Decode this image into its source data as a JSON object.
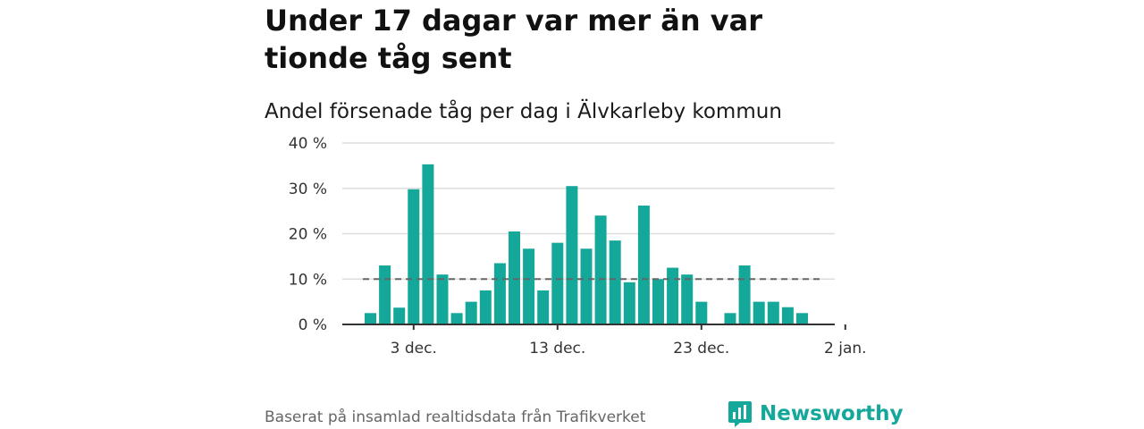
{
  "title": "Under 17 dagar var mer än var tionde tåg sent",
  "subtitle": "Andel försenade tåg per dag i Älvkarleby kommun",
  "source": "Baserat på insamlad realtidsdata från Trafikverket",
  "brand": {
    "name": "Newsworthy",
    "icon": "newsworthy-logo-icon"
  },
  "colors": {
    "bar": "#14a89a",
    "threshold": "#666666",
    "grid": "#dddddd",
    "axis": "#333333",
    "brand": "#14a89a"
  },
  "chart_data": {
    "type": "bar",
    "title": "Andel försenade tåg per dag i Älvkarleby kommun",
    "xlabel": "",
    "ylabel": "",
    "x_tick_labels": [
      "3 dec.",
      "13 dec.",
      "23 dec.",
      "2 jan."
    ],
    "y_tick_labels": [
      "0 %",
      "10 %",
      "20 %",
      "30 %",
      "40 %"
    ],
    "ylim": [
      0,
      40
    ],
    "grid": true,
    "threshold": 10,
    "categories": [
      "2018-11-30",
      "2018-12-01",
      "2018-12-02",
      "2018-12-03",
      "2018-12-04",
      "2018-12-05",
      "2018-12-06",
      "2018-12-07",
      "2018-12-08",
      "2018-12-09",
      "2018-12-10",
      "2018-12-11",
      "2018-12-12",
      "2018-12-13",
      "2018-12-14",
      "2018-12-15",
      "2018-12-16",
      "2018-12-17",
      "2018-12-18",
      "2018-12-19",
      "2018-12-20",
      "2018-12-21",
      "2018-12-22",
      "2018-12-23",
      "2018-12-24",
      "2018-12-25",
      "2018-12-26",
      "2018-12-27",
      "2018-12-28",
      "2018-12-29",
      "2018-12-30",
      "2018-12-31"
    ],
    "values": [
      2.5,
      13,
      3.7,
      29.8,
      35.3,
      11,
      2.5,
      5,
      7.5,
      13.5,
      20.5,
      16.7,
      7.5,
      18,
      30.5,
      16.7,
      24,
      18.5,
      9.3,
      26.2,
      10,
      12.5,
      11,
      5,
      null,
      2.5,
      13,
      5,
      5,
      3.8,
      2.5,
      null
    ],
    "unit": "%"
  }
}
